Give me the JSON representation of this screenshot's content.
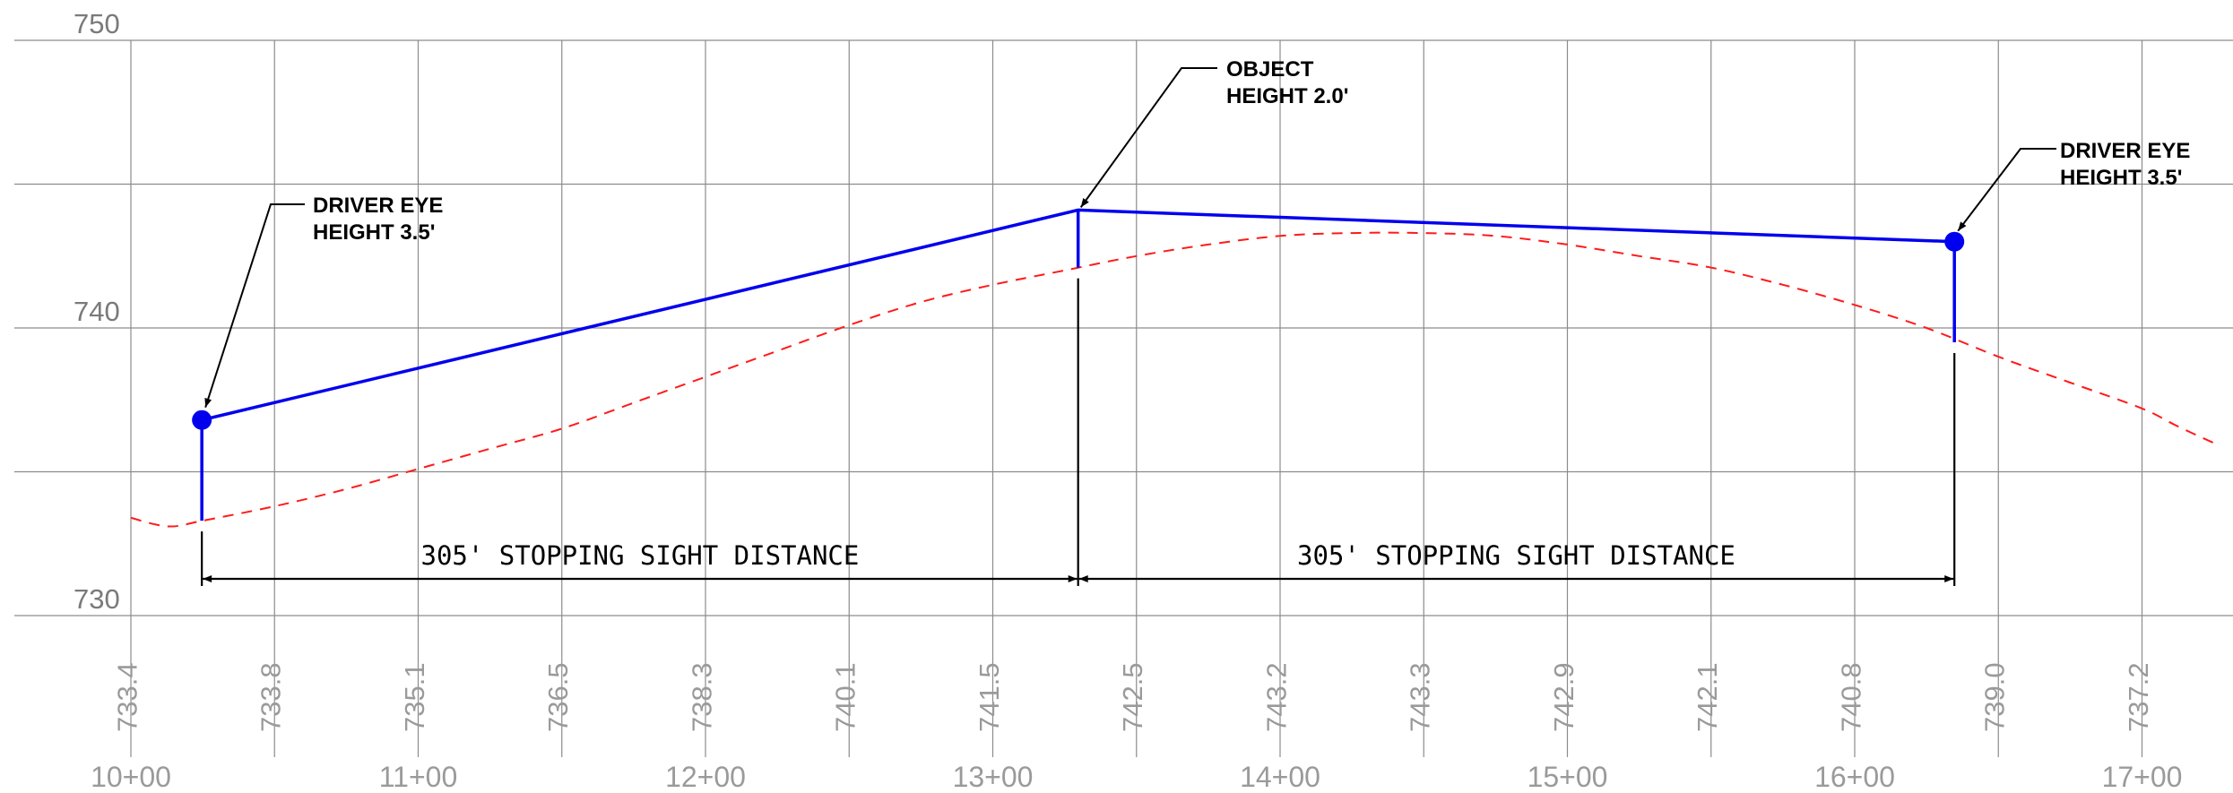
{
  "chart_data": {
    "type": "line",
    "x_range": [
      1000,
      1725
    ],
    "ylim": [
      730,
      750
    ],
    "elevation_ticks": [
      {
        "value": 750,
        "label": "750"
      },
      {
        "value": 745,
        "label": ""
      },
      {
        "value": 740,
        "label": "740"
      },
      {
        "value": 735,
        "label": ""
      },
      {
        "value": 730,
        "label": "730"
      }
    ],
    "station_labels": [
      {
        "station": 1000,
        "label": "10+00"
      },
      {
        "station": 1100,
        "label": "11+00"
      },
      {
        "station": 1200,
        "label": "12+00"
      },
      {
        "station": 1300,
        "label": "13+00"
      },
      {
        "station": 1400,
        "label": "14+00"
      },
      {
        "station": 1500,
        "label": "15+00"
      },
      {
        "station": 1600,
        "label": "16+00"
      },
      {
        "station": 1700,
        "label": "17+00"
      }
    ],
    "ground_elevations": [
      {
        "station": 1000,
        "label": "733.4"
      },
      {
        "station": 1050,
        "label": "733.8"
      },
      {
        "station": 1100,
        "label": "735.1"
      },
      {
        "station": 1150,
        "label": "736.5"
      },
      {
        "station": 1200,
        "label": "738.3"
      },
      {
        "station": 1250,
        "label": "740.1"
      },
      {
        "station": 1300,
        "label": "741.5"
      },
      {
        "station": 1350,
        "label": "742.5"
      },
      {
        "station": 1400,
        "label": "743.2"
      },
      {
        "station": 1450,
        "label": "743.3"
      },
      {
        "station": 1500,
        "label": "742.9"
      },
      {
        "station": 1550,
        "label": "742.1"
      },
      {
        "station": 1600,
        "label": "740.8"
      },
      {
        "station": 1650,
        "label": "739.0"
      },
      {
        "station": 1700,
        "label": "737.2"
      }
    ],
    "ground_profile": [
      [
        1000,
        733.4
      ],
      [
        1013,
        733.1
      ],
      [
        1025,
        733.3
      ],
      [
        1050,
        733.8
      ],
      [
        1075,
        734.4
      ],
      [
        1100,
        735.1
      ],
      [
        1125,
        735.8
      ],
      [
        1150,
        736.5
      ],
      [
        1175,
        737.4
      ],
      [
        1200,
        738.3
      ],
      [
        1225,
        739.2
      ],
      [
        1250,
        740.1
      ],
      [
        1275,
        740.9
      ],
      [
        1300,
        741.5
      ],
      [
        1325,
        742.0
      ],
      [
        1350,
        742.5
      ],
      [
        1375,
        742.9
      ],
      [
        1400,
        743.2
      ],
      [
        1425,
        743.3
      ],
      [
        1450,
        743.3
      ],
      [
        1475,
        743.2
      ],
      [
        1500,
        742.9
      ],
      [
        1525,
        742.5
      ],
      [
        1550,
        742.1
      ],
      [
        1575,
        741.5
      ],
      [
        1600,
        740.8
      ],
      [
        1625,
        740.0
      ],
      [
        1650,
        739.0
      ],
      [
        1675,
        738.1
      ],
      [
        1700,
        737.2
      ],
      [
        1712,
        736.6
      ],
      [
        1725,
        736.0
      ]
    ],
    "sight_points": [
      {
        "role": "driver-left",
        "station": 1024.7,
        "ground": 733.3,
        "top": 736.8
      },
      {
        "role": "object",
        "station": 1329.7,
        "ground": 742.1,
        "top": 744.1
      },
      {
        "role": "driver-right",
        "station": 1634.7,
        "ground": 739.5,
        "top": 743.0
      }
    ],
    "annotations": {
      "driver_left": [
        "DRIVER EYE",
        "HEIGHT 3.5'"
      ],
      "object": [
        "OBJECT",
        "HEIGHT 2.0'"
      ],
      "driver_right": [
        "DRIVER EYE",
        "HEIGHT 3.5'"
      ]
    },
    "dimensions": [
      {
        "from": 1024.7,
        "to": 1329.7,
        "label": "305' STOPPING SIGHT DISTANCE"
      },
      {
        "from": 1329.7,
        "to": 1634.7,
        "label": "305' STOPPING SIGHT DISTANCE"
      }
    ],
    "colors": {
      "sight_line": "#0000ee",
      "ground": "#ff1a1a",
      "grid": "#8c8c8c",
      "dimension": "#000000"
    }
  }
}
